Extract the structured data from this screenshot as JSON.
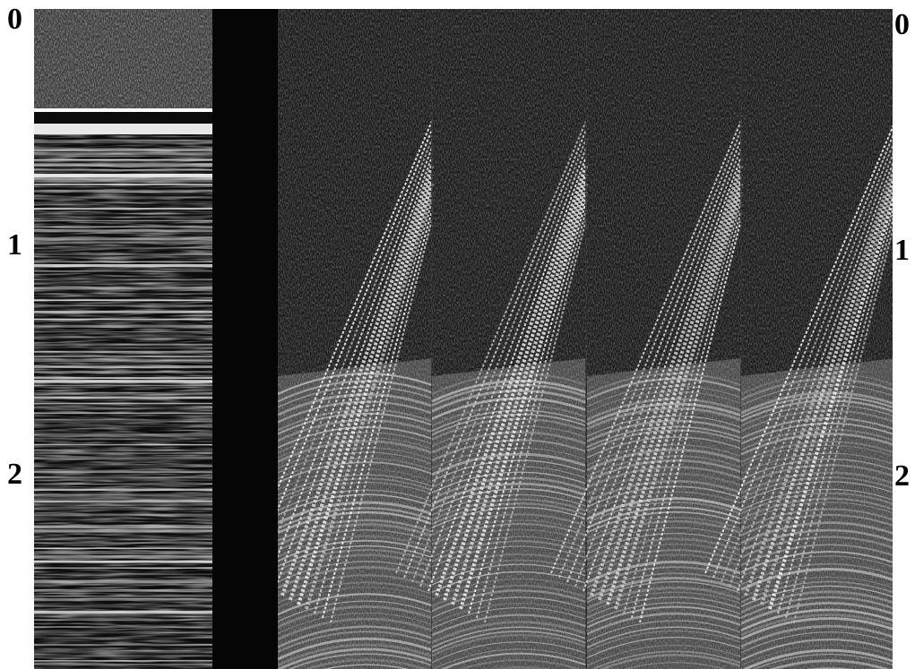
{
  "left_axis": {
    "labels": [
      "0",
      "1",
      "2"
    ]
  },
  "right_axis": {
    "labels": [
      "0",
      "1",
      "2"
    ]
  }
}
